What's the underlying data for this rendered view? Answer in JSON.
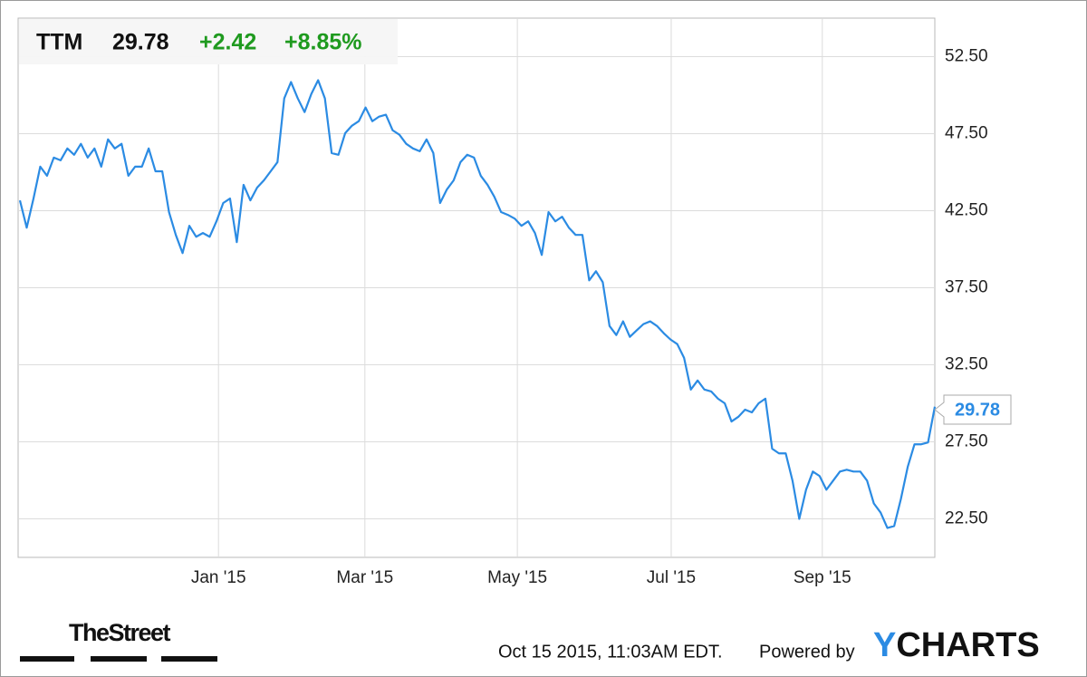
{
  "chart_data": {
    "type": "line",
    "title": "TTM",
    "change": "+2.42",
    "change_percent": "+8.85%",
    "color": "#2b8be3",
    "change_color": "#1f9a1f",
    "grid": true,
    "values": [
      43.17,
      41.4,
      43.29,
      45.36,
      44.77,
      45.95,
      45.77,
      46.54,
      46.13,
      46.84,
      45.95,
      46.54,
      45.36,
      47.13,
      46.54,
      46.84,
      44.77,
      45.36,
      45.36,
      46.54,
      45.06,
      45.06,
      42.41,
      40.93,
      39.75,
      41.52,
      40.81,
      41.05,
      40.81,
      41.81,
      43.0,
      43.29,
      40.46,
      44.18,
      43.17,
      44.0,
      44.47,
      45.06,
      45.65,
      49.79,
      50.85,
      49.79,
      48.9,
      50.08,
      50.97,
      49.79,
      46.24,
      46.13,
      47.54,
      48.02,
      48.31,
      49.2,
      48.31,
      48.61,
      48.73,
      47.72,
      47.43,
      46.84,
      46.54,
      46.36,
      47.13,
      46.24,
      43.0,
      43.88,
      44.47,
      45.65,
      46.13,
      45.95,
      44.77,
      44.18,
      43.41,
      42.41,
      42.23,
      41.99,
      41.52,
      41.81,
      41.05,
      39.63,
      42.41,
      41.81,
      42.11,
      41.4,
      40.93,
      40.93,
      37.98,
      38.57,
      37.86,
      35.02,
      34.43,
      35.32,
      34.31,
      34.73,
      35.14,
      35.32,
      35.02,
      34.55,
      34.14,
      33.84,
      32.95,
      30.89,
      31.48,
      30.89,
      30.77,
      30.3,
      30.0,
      28.82,
      29.12,
      29.59,
      29.41,
      30.0,
      30.3,
      27.05,
      26.75,
      26.75,
      24.98,
      22.5,
      24.39,
      25.57,
      25.28,
      24.39,
      24.98,
      25.57,
      25.69,
      25.57,
      25.57,
      24.98,
      23.5,
      22.91,
      21.91,
      22.03,
      23.8,
      25.87,
      27.34,
      27.34,
      27.46,
      29.78
    ],
    "xlim": [
      0,
      135
    ],
    "xticks": [
      {
        "value": 29.3,
        "label": "Jan '15"
      },
      {
        "value": 50.9,
        "label": "Mar '15"
      },
      {
        "value": 73.4,
        "label": "May '15"
      },
      {
        "value": 96.1,
        "label": "Jul '15"
      },
      {
        "value": 118.4,
        "label": "Sep '15"
      }
    ],
    "ylim": [
      20,
      55
    ],
    "yticks": [
      {
        "value": 22.5,
        "label": "22.50"
      },
      {
        "value": 27.5,
        "label": "27.50"
      },
      {
        "value": 32.5,
        "label": "32.50"
      },
      {
        "value": 37.5,
        "label": "37.50"
      },
      {
        "value": 42.5,
        "label": "42.50"
      },
      {
        "value": 47.5,
        "label": "47.50"
      },
      {
        "value": 52.5,
        "label": "52.50"
      }
    ]
  },
  "footer": {
    "source": "TheStreet",
    "timestamp": "Oct 15 2015, 11:03AM EDT.",
    "powered_by": "Powered by",
    "brand": "YCHARTS"
  }
}
